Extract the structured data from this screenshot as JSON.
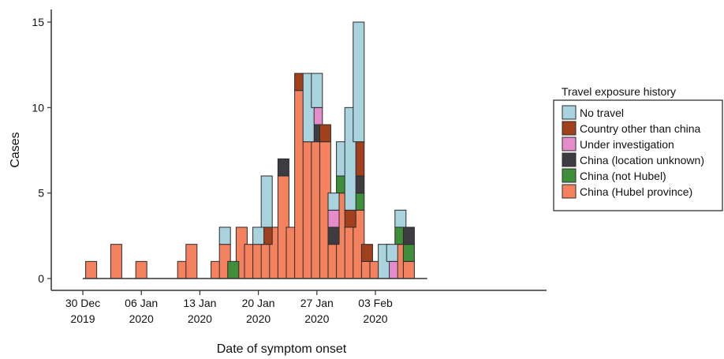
{
  "chart_data": {
    "type": "bar",
    "stacked": true,
    "xlabel": "Date of symptom onset",
    "ylabel": "Cases",
    "ylim": [
      0,
      15
    ],
    "y_ticks": [
      "0",
      "5",
      "10",
      "15"
    ],
    "x_ticks": [
      {
        "day": 0,
        "line1": "30 Dec",
        "line2": "2019"
      },
      {
        "day": 7,
        "line1": "06 Jan",
        "line2": "2020"
      },
      {
        "day": 14,
        "line1": "13 Jan",
        "line2": "2020"
      },
      {
        "day": 21,
        "line1": "20 Jan",
        "line2": "2020"
      },
      {
        "day": 28,
        "line1": "27 Jan",
        "line2": "2020"
      },
      {
        "day": 35,
        "line1": "03 Feb",
        "line2": "2020"
      }
    ],
    "x_start_date": "2019-12-30",
    "x_range_days": [
      -2.2,
      42.4
    ],
    "grid": false,
    "legend": {
      "title": "Travel exposure history",
      "placement": "right",
      "entries": [
        "No travel",
        "Country other than china",
        "Under investigation",
        "China (location unknown)",
        "China (not Hubel)",
        "China (Hubel province)"
      ]
    },
    "colors": {
      "China (Hubel province)": "#f4825e",
      "China (not Hubel)": "#3f8f3a",
      "China (location unknown)": "#3e3b42",
      "Under investigation": "#e58ccc",
      "Country other than china": "#a1401c",
      "No travel": "#a9d3df"
    },
    "categories": [
      "31 Dec 2019",
      "01 Jan 2020",
      "02 Jan 2020",
      "03 Jan 2020",
      "04 Jan 2020",
      "05 Jan 2020",
      "06 Jan 2020",
      "07 Jan 2020",
      "08 Jan 2020",
      "09 Jan 2020",
      "10 Jan 2020",
      "11 Jan 2020",
      "12 Jan 2020",
      "13 Jan 2020",
      "14 Jan 2020",
      "15 Jan 2020",
      "16 Jan 2020",
      "17 Jan 2020",
      "18 Jan 2020",
      "19 Jan 2020",
      "20 Jan 2020",
      "21 Jan 2020",
      "22 Jan 2020",
      "23 Jan 2020",
      "24 Jan 2020",
      "25 Jan 2020",
      "26 Jan 2020",
      "27 Jan 2020",
      "28 Jan 2020",
      "29 Jan 2020",
      "30 Jan 2020",
      "31 Jan 2020",
      "01 Feb 2020",
      "02 Feb 2020",
      "03 Feb 2020",
      "04 Feb 2020",
      "05 Feb 2020",
      "06 Feb 2020",
      "07 Feb 2020",
      "08 Feb 2020",
      "09 Feb 2020"
    ],
    "series": [
      {
        "name": "China (Hubel province)",
        "values": [
          1,
          0,
          0,
          2,
          0,
          0,
          1,
          0,
          0,
          0,
          0,
          1,
          2,
          0,
          0,
          1,
          2,
          0,
          3,
          2,
          2,
          2,
          3,
          6,
          3,
          11,
          8,
          8,
          8,
          2,
          5,
          3,
          4,
          1,
          1,
          0,
          0,
          2,
          1,
          0,
          0
        ]
      },
      {
        "name": "China (not Hubel)",
        "values": [
          0,
          0,
          0,
          0,
          0,
          0,
          0,
          0,
          0,
          0,
          0,
          0,
          0,
          0,
          0,
          0,
          0,
          1,
          0,
          0,
          0,
          0,
          0,
          0,
          0,
          0,
          0,
          0,
          0,
          0,
          1,
          0,
          1,
          0,
          0,
          0,
          0,
          1,
          1,
          0,
          0
        ]
      },
      {
        "name": "China (location unknown)",
        "values": [
          0,
          0,
          0,
          0,
          0,
          0,
          0,
          0,
          0,
          0,
          0,
          0,
          0,
          0,
          0,
          0,
          0,
          0,
          0,
          0,
          0,
          0,
          0,
          1,
          0,
          0,
          0,
          1,
          0,
          1,
          0,
          0,
          1,
          0,
          0,
          0,
          0,
          0,
          1,
          0,
          0
        ]
      },
      {
        "name": "Under investigation",
        "values": [
          0,
          0,
          0,
          0,
          0,
          0,
          0,
          0,
          0,
          0,
          0,
          0,
          0,
          0,
          0,
          0,
          0,
          0,
          0,
          0,
          0,
          0,
          0,
          0,
          0,
          0,
          0,
          1,
          0,
          1,
          0,
          0,
          0,
          0,
          0,
          0,
          1,
          0,
          0,
          0,
          0
        ]
      },
      {
        "name": "Country other than china",
        "values": [
          0,
          0,
          0,
          0,
          0,
          0,
          0,
          0,
          0,
          0,
          0,
          0,
          0,
          0,
          0,
          0,
          0,
          0,
          0,
          0,
          0,
          1,
          0,
          0,
          0,
          1,
          0,
          0,
          1,
          0,
          0,
          1,
          2,
          1,
          0,
          0,
          0,
          0,
          0,
          0,
          0
        ]
      },
      {
        "name": "No travel",
        "values": [
          0,
          0,
          0,
          0,
          0,
          0,
          0,
          0,
          0,
          0,
          0,
          0,
          0,
          0,
          0,
          0,
          1,
          0,
          0,
          0,
          1,
          3,
          0,
          0,
          0,
          0,
          4,
          2,
          0,
          1,
          2,
          6,
          7,
          0,
          0,
          2,
          1,
          1,
          0,
          0,
          0
        ]
      }
    ]
  }
}
